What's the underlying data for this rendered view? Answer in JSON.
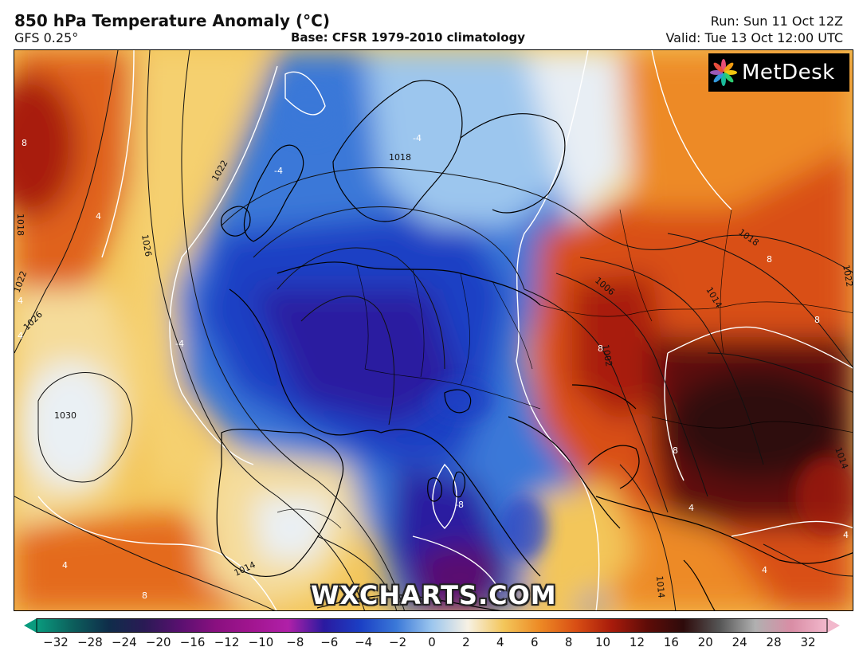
{
  "header": {
    "title": "850 hPa Temperature Anomaly (°C)",
    "model": "GFS 0.25°",
    "base": "Base: CFSR 1979-2010 climatology",
    "run": "Run: Sun 11 Oct 12Z",
    "valid": "Valid: Tue 13 Oct 12:00 UTC"
  },
  "logo": {
    "text": "MetDesk",
    "icon": "metdesk-pinwheel-icon"
  },
  "watermark": "WXCHARTS.COM",
  "colorbar": {
    "ticks": [
      "−32",
      "−28",
      "−24",
      "−20",
      "−16",
      "−12",
      "−10",
      "−8",
      "−6",
      "−4",
      "−2",
      "0",
      "2",
      "4",
      "6",
      "8",
      "10",
      "12",
      "16",
      "20",
      "24",
      "28",
      "32"
    ],
    "colors": [
      "#0a9b7e",
      "#0c5f5c",
      "#0f2d4a",
      "#2a1a55",
      "#5a1070",
      "#8a1080",
      "#a21590",
      "#b020a8",
      "#2a1aa0",
      "#1b3fc4",
      "#3a78d8",
      "#9cc6ee",
      "#f7f1e4",
      "#f3c65a",
      "#ed8a25",
      "#d94f14",
      "#a81b0b",
      "#5e0c08",
      "#2e0b0b",
      "#555555",
      "#b0b0b0",
      "#d98da5",
      "#f2b8cc"
    ]
  },
  "map": {
    "isobar_labels": [
      "1018",
      "1022",
      "1026",
      "1030",
      "1022",
      "1026",
      "1018",
      "1006",
      "1002",
      "1014",
      "1018",
      "1014",
      "1022",
      "1014",
      "1014"
    ],
    "anomaly_labels": [
      "8",
      "4",
      "4",
      "4",
      "4",
      "-4",
      "-4",
      "-4",
      "-8",
      "8",
      "8",
      "8",
      "8",
      "4",
      "4",
      "8",
      "4"
    ]
  }
}
